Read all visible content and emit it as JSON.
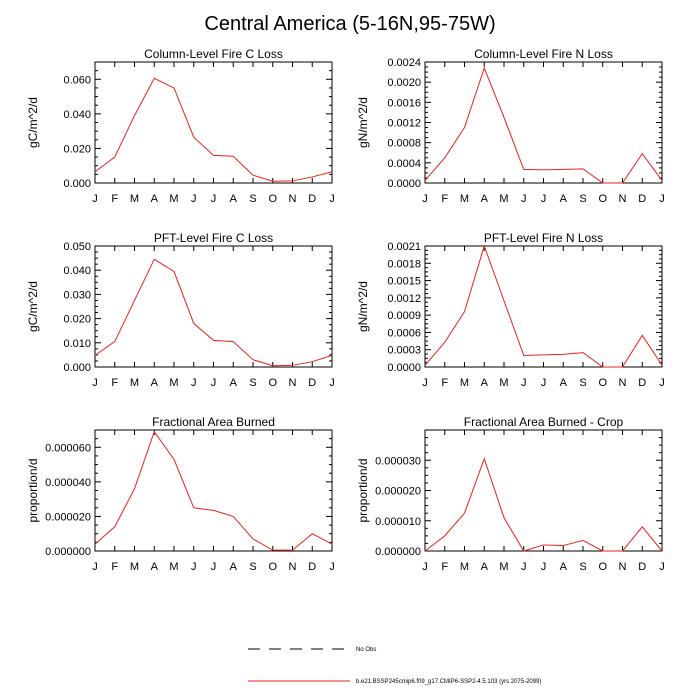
{
  "figure": {
    "title": "Central America (5-16N,95-75W)"
  },
  "legend": {
    "no_obs_label": "No Obs",
    "series_label": "b.e21.BSSP245cmip6.f09_g17.CMIP6-SSP2-4.5.103 (yrs 2075-2099)",
    "series_color": "#e8231c",
    "no_obs_color": "#000000"
  },
  "chart_data": [
    {
      "type": "line",
      "title": "Column-Level Fire C Loss",
      "xlabel": "",
      "ylabel": "gC/m^2/d",
      "x": [
        "J",
        "F",
        "M",
        "A",
        "M",
        "J",
        "J",
        "A",
        "S",
        "O",
        "N",
        "D",
        "J"
      ],
      "ylim": [
        0,
        0.07
      ],
      "yticks": [
        0,
        0.02,
        0.04,
        0.06
      ],
      "ytick_labels": [
        "0.000",
        "0.020",
        "0.040",
        "0.060"
      ],
      "series": [
        {
          "name": "b.e21.BSSP245cmip6.f09_g17.CMIP6-SSP2-4.5.103 (yrs 2075-2099)",
          "values": [
            0.0065,
            0.015,
            0.039,
            0.0605,
            0.055,
            0.0265,
            0.016,
            0.0155,
            0.0045,
            0.001,
            0.0012,
            0.0035,
            0.0065
          ]
        }
      ]
    },
    {
      "type": "line",
      "title": "Column-Level Fire N Loss",
      "xlabel": "",
      "ylabel": "gN/m^2/d",
      "x": [
        "J",
        "F",
        "M",
        "A",
        "M",
        "J",
        "J",
        "A",
        "S",
        "O",
        "N",
        "D",
        "J"
      ],
      "ylim": [
        0,
        0.0024
      ],
      "yticks": [
        0,
        0.0004,
        0.0008,
        0.0012,
        0.0016,
        0.002,
        0.0024
      ],
      "ytick_labels": [
        "0.0000",
        "0.0004",
        "0.0008",
        "0.0012",
        "0.0016",
        "0.0020",
        "0.0024"
      ],
      "series": [
        {
          "name": "b.e21.BSSP245cmip6.f09_g17.CMIP6-SSP2-4.5.103 (yrs 2075-2099)",
          "values": [
            5e-05,
            0.0005,
            0.0011,
            0.00228,
            0.0013,
            0.00027,
            0.00026,
            0.00027,
            0.00028,
            0.0,
            0.0,
            0.00058,
            5e-05
          ]
        }
      ]
    },
    {
      "type": "line",
      "title": "PFT-Level Fire C Loss",
      "xlabel": "",
      "ylabel": "gC/m^2/d",
      "x": [
        "J",
        "F",
        "M",
        "A",
        "M",
        "J",
        "J",
        "A",
        "S",
        "O",
        "N",
        "D",
        "J"
      ],
      "ylim": [
        0,
        0.05
      ],
      "yticks": [
        0,
        0.01,
        0.02,
        0.03,
        0.04,
        0.05
      ],
      "ytick_labels": [
        "0.000",
        "0.010",
        "0.020",
        "0.030",
        "0.040",
        "0.050"
      ],
      "series": [
        {
          "name": "b.e21.BSSP245cmip6.f09_g17.CMIP6-SSP2-4.5.103 (yrs 2075-2099)",
          "values": [
            0.0048,
            0.0105,
            0.0275,
            0.0445,
            0.0395,
            0.018,
            0.011,
            0.0105,
            0.003,
            0.0005,
            0.0007,
            0.0022,
            0.0048
          ]
        }
      ]
    },
    {
      "type": "line",
      "title": "PFT-Level Fire N Loss",
      "xlabel": "",
      "ylabel": "gN/m^2/d",
      "x": [
        "J",
        "F",
        "M",
        "A",
        "M",
        "J",
        "J",
        "A",
        "S",
        "O",
        "N",
        "D",
        "J"
      ],
      "ylim": [
        0,
        0.0021
      ],
      "yticks": [
        0,
        0.0003,
        0.0006,
        0.0009,
        0.0012,
        0.0015,
        0.0018,
        0.0021
      ],
      "ytick_labels": [
        "0.0000",
        "0.0003",
        "0.0006",
        "0.0009",
        "0.0012",
        "0.0015",
        "0.0018",
        "0.0021"
      ],
      "series": [
        {
          "name": "b.e21.BSSP245cmip6.f09_g17.CMIP6-SSP2-4.5.103 (yrs 2075-2099)",
          "values": [
            3e-05,
            0.00043,
            0.00096,
            0.0021,
            0.00115,
            0.0002,
            0.00021,
            0.00022,
            0.00025,
            0.0,
            0.0,
            0.00055,
            3e-05
          ]
        }
      ]
    },
    {
      "type": "line",
      "title": "Fractional Area Burned",
      "xlabel": "",
      "ylabel": "proportion/d",
      "x": [
        "J",
        "F",
        "M",
        "A",
        "M",
        "J",
        "J",
        "A",
        "S",
        "O",
        "N",
        "D",
        "J"
      ],
      "ylim": [
        0,
        7e-05
      ],
      "yticks": [
        0,
        2e-05,
        4e-05,
        6e-05
      ],
      "ytick_labels": [
        "0.000000",
        "0.000020",
        "0.000040",
        "0.000060"
      ],
      "series": [
        {
          "name": "b.e21.BSSP245cmip6.f09_g17.CMIP6-SSP2-4.5.103 (yrs 2075-2099)",
          "values": [
            4e-06,
            1.4e-05,
            3.6e-05,
            6.9e-05,
            5.3e-05,
            2.5e-05,
            2.35e-05,
            2e-05,
            7e-06,
            5e-07,
            5e-07,
            1e-05,
            4e-06
          ]
        }
      ]
    },
    {
      "type": "line",
      "title": "Fractional Area Burned - Crop",
      "xlabel": "",
      "ylabel": "proportion/d",
      "x": [
        "J",
        "F",
        "M",
        "A",
        "M",
        "J",
        "J",
        "A",
        "S",
        "O",
        "N",
        "D",
        "J"
      ],
      "ylim": [
        0,
        4e-05
      ],
      "yticks": [
        0,
        1e-05,
        2e-05,
        3e-05
      ],
      "ytick_labels": [
        "0.000000",
        "0.000010",
        "0.000020",
        "0.000030"
      ],
      "series": [
        {
          "name": "b.e21.BSSP245cmip6.f09_g17.CMIP6-SSP2-4.5.103 (yrs 2075-2099)",
          "values": [
            0.0,
            5e-06,
            1.25e-05,
            3.05e-05,
            1.1e-05,
            0.0,
            2e-06,
            1.8e-06,
            3.5e-06,
            0.0,
            0.0,
            8e-06,
            0.0
          ]
        }
      ]
    }
  ]
}
